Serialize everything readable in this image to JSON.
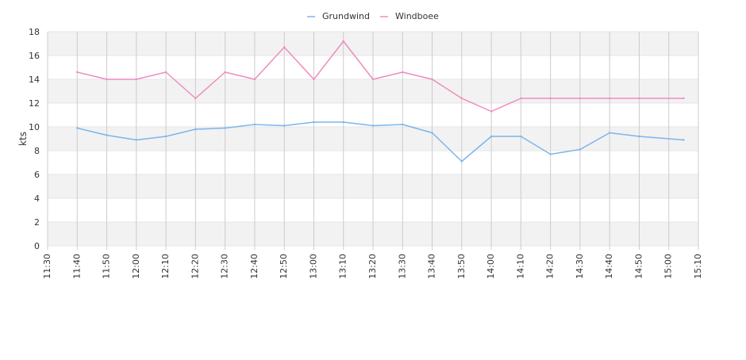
{
  "chart_data": {
    "type": "line",
    "title": "",
    "xlabel": "",
    "ylabel": "kts",
    "ylim": [
      0,
      18
    ],
    "yticks": [
      0,
      2,
      4,
      6,
      8,
      10,
      12,
      14,
      16,
      18
    ],
    "xlim": [
      "11:30",
      "15:10"
    ],
    "x_tick_labels": [
      "11:30",
      "11:40",
      "11:50",
      "12:00",
      "12:10",
      "12:20",
      "12:30",
      "12:40",
      "12:50",
      "13:00",
      "13:10",
      "13:20",
      "13:30",
      "13:40",
      "13:50",
      "14:00",
      "14:10",
      "14:20",
      "14:30",
      "14:40",
      "14:50",
      "15:00",
      "15:10"
    ],
    "x": [
      "11:40",
      "11:50",
      "12:00",
      "12:10",
      "12:20",
      "12:30",
      "12:40",
      "12:50",
      "13:00",
      "13:10",
      "13:20",
      "13:30",
      "13:40",
      "13:50",
      "14:00",
      "14:10",
      "14:20",
      "14:30",
      "14:40",
      "14:50",
      "15:05"
    ],
    "series": [
      {
        "name": "Grundwind",
        "color": "#7cb5ec",
        "values": [
          9.9,
          9.3,
          8.9,
          9.2,
          9.8,
          9.9,
          10.2,
          10.1,
          10.4,
          10.4,
          10.1,
          10.2,
          9.5,
          7.1,
          9.2,
          9.2,
          7.7,
          8.1,
          9.5,
          9.2,
          8.9
        ]
      },
      {
        "name": "Windboee",
        "color": "#f08cbf",
        "values": [
          14.6,
          14.0,
          14.0,
          14.6,
          12.4,
          14.6,
          14.0,
          16.7,
          14.0,
          17.2,
          14.0,
          14.6,
          14.0,
          12.4,
          11.3,
          12.4,
          12.4,
          12.4,
          12.4,
          12.4,
          12.4
        ]
      }
    ],
    "legend_position": "top-center",
    "grid": true,
    "alternate_bands_color": "#f2f2f2",
    "vertical_grid_color": "#cccccc"
  }
}
